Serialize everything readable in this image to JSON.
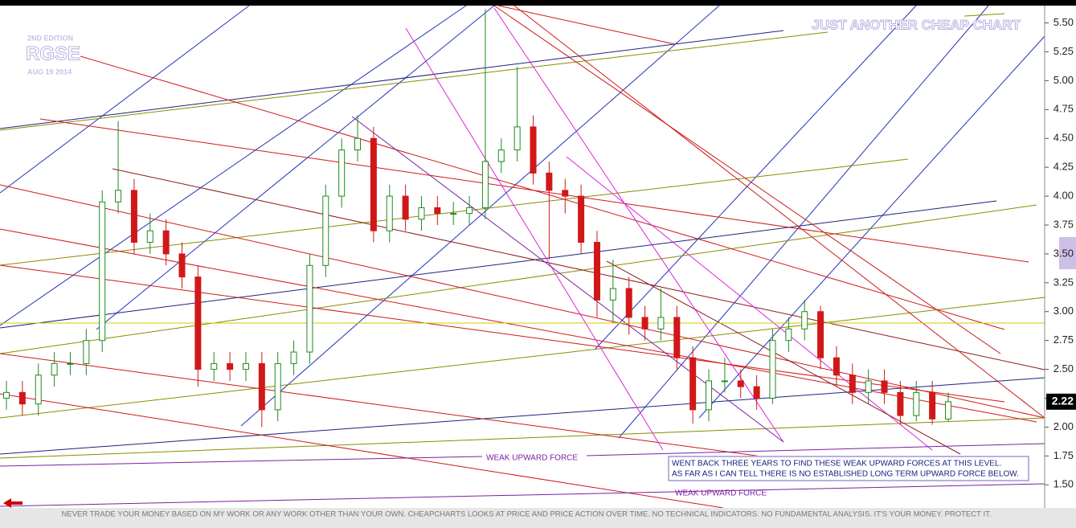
{
  "chart_data": {
    "type": "candlestick",
    "title": "JUST ANOTHER CHEAP CHART",
    "edition": "2ND EDITION",
    "symbol": "RGSE",
    "date": "AUG 19 2014",
    "annotations": [
      "WEAK UPWARD FORCE",
      "WEAK UPWARD FORCE"
    ],
    "note": [
      "WENT BACK THREE YEARS TO FIND THESE WEAK UPWARD FORCES AT THIS LEVEL.",
      "AS FAR AS I CAN TELL THERE IS NO ESTABLISHED LONG TERM UPWARD FORCE BELOW."
    ],
    "disclaimer": "NEVER TRADE YOUR MONEY BASED ON MY WORK OR ANY WORK OTHER THAN YOUR OWN. CHEAPCHARTS LOOKS AT PRICE AND PRICE ACTION OVER TIME. NO TECHNICAL INDICATORS. NO FUNDAMENTAL ANALYSIS. IT'S YOUR MONEY. PROTECT IT.",
    "last_value": 2.22,
    "ylim": [
      1.3,
      5.65
    ],
    "yticks": [
      {
        "value": 1.5,
        "label": "1.50"
      },
      1.75,
      {
        "value": 2,
        "label": "2.00"
      },
      2.25,
      {
        "value": 2.5,
        "label": "2.50"
      },
      2.75,
      {
        "value": 3,
        "label": "3.00"
      },
      3.25,
      {
        "value": 3.5,
        "label": "3.50"
      },
      3.75,
      {
        "value": 4,
        "label": "4.00"
      },
      4.25,
      {
        "value": 4.5,
        "label": "4.50"
      },
      4.75,
      {
        "value": 5,
        "label": "5.00"
      },
      5.25,
      {
        "value": 5.5,
        "label": "5.50"
      }
    ],
    "up_color": "#1f8a1f",
    "down_color": "#d01818",
    "open": [
      2.25,
      2.3,
      2.2,
      2.45,
      2.55,
      2.55,
      2.75,
      3.95,
      4.05,
      3.6,
      3.7,
      3.5,
      3.3,
      2.5,
      2.55,
      2.5,
      2.55,
      2.15,
      2.55,
      2.65,
      3.4,
      4.0,
      4.4,
      4.5,
      3.7,
      4.0,
      3.8,
      3.9,
      3.85,
      3.85,
      3.9,
      4.3,
      4.4,
      4.6,
      4.2,
      4.05,
      4.0,
      3.6,
      3.1,
      3.2,
      2.95,
      2.85,
      2.95,
      2.6,
      2.15,
      2.4,
      2.4,
      2.35,
      2.25,
      2.75,
      2.85,
      3.0,
      2.6,
      2.45,
      2.3,
      2.4,
      2.3,
      2.1,
      2.3,
      2.07
    ],
    "high": [
      2.4,
      2.4,
      2.55,
      2.65,
      2.65,
      2.85,
      4.05,
      4.65,
      4.15,
      3.85,
      3.8,
      3.6,
      3.4,
      2.65,
      2.65,
      2.65,
      2.65,
      2.65,
      2.75,
      3.5,
      4.1,
      4.5,
      4.7,
      4.6,
      4.1,
      4.1,
      4.0,
      4.0,
      3.95,
      4.0,
      5.62,
      4.5,
      5.12,
      4.7,
      4.3,
      4.15,
      4.1,
      3.7,
      3.45,
      3.3,
      3.05,
      3.2,
      3.05,
      2.7,
      2.5,
      2.6,
      2.5,
      2.45,
      2.85,
      2.95,
      3.1,
      3.05,
      2.7,
      2.55,
      2.5,
      2.5,
      2.4,
      2.4,
      2.4,
      2.3
    ],
    "low": [
      2.15,
      2.1,
      2.1,
      2.35,
      2.45,
      2.45,
      2.65,
      3.85,
      3.5,
      3.5,
      3.4,
      3.2,
      2.35,
      2.4,
      2.4,
      2.4,
      2.0,
      2.05,
      2.45,
      2.55,
      3.3,
      3.9,
      4.3,
      3.6,
      3.6,
      3.7,
      3.7,
      3.75,
      3.75,
      3.75,
      3.8,
      4.2,
      4.3,
      4.1,
      3.45,
      3.85,
      3.5,
      2.95,
      2.9,
      2.8,
      2.75,
      2.75,
      2.5,
      2.03,
      2.05,
      2.3,
      2.25,
      2.15,
      2.2,
      2.65,
      2.75,
      2.5,
      2.35,
      2.2,
      2.2,
      2.2,
      2.02,
      2.05,
      2.02,
      2.05
    ],
    "close": [
      2.3,
      2.2,
      2.45,
      2.55,
      2.55,
      2.75,
      3.95,
      4.05,
      3.6,
      3.7,
      3.5,
      3.3,
      2.5,
      2.55,
      2.5,
      2.55,
      2.15,
      2.55,
      2.65,
      3.4,
      4.0,
      4.4,
      4.5,
      3.7,
      4.0,
      3.8,
      3.9,
      3.85,
      3.85,
      3.9,
      4.3,
      4.4,
      4.6,
      4.2,
      4.05,
      4.0,
      3.6,
      3.1,
      3.2,
      2.95,
      2.85,
      2.95,
      2.6,
      2.15,
      2.4,
      2.4,
      2.35,
      2.25,
      2.75,
      2.85,
      3.0,
      2.6,
      2.45,
      2.3,
      2.4,
      2.3,
      2.1,
      2.3,
      2.07,
      2.22
    ]
  }
}
